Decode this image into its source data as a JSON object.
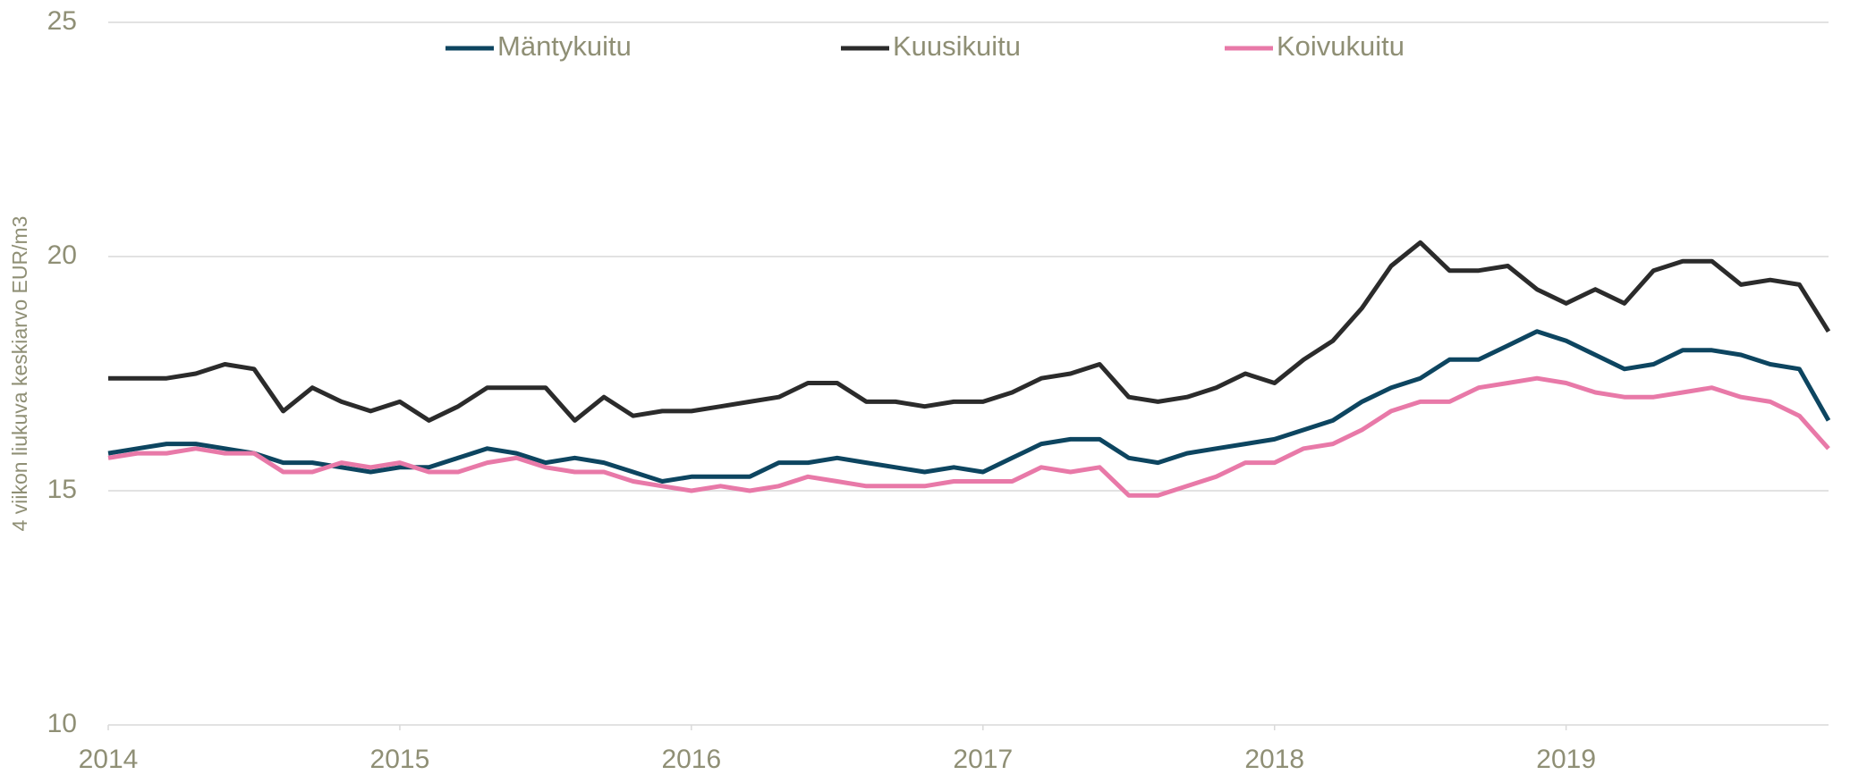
{
  "chart_data": {
    "type": "line",
    "y_label": "4 viikon liukuva keskiarvo EUR/m3",
    "x": [
      2014.0,
      2014.1,
      2014.2,
      2014.3,
      2014.4,
      2014.5,
      2014.6,
      2014.7,
      2014.8,
      2014.9,
      2015.0,
      2015.1,
      2015.2,
      2015.3,
      2015.4,
      2015.5,
      2015.6,
      2015.7,
      2015.8,
      2015.9,
      2016.0,
      2016.1,
      2016.2,
      2016.3,
      2016.4,
      2016.5,
      2016.6,
      2016.7,
      2016.8,
      2016.9,
      2017.0,
      2017.1,
      2017.2,
      2017.3,
      2017.4,
      2017.5,
      2017.6,
      2017.7,
      2017.8,
      2017.9,
      2018.0,
      2018.1,
      2018.2,
      2018.3,
      2018.4,
      2018.5,
      2018.6,
      2018.7,
      2018.8,
      2018.9,
      2019.0,
      2019.1,
      2019.2,
      2019.3,
      2019.4,
      2019.5,
      2019.6,
      2019.7,
      2019.8,
      2019.9
    ],
    "series": [
      {
        "name": "Mäntykuitu",
        "color": "#0d4560",
        "values": [
          15.8,
          15.9,
          16.0,
          16.0,
          15.9,
          15.8,
          15.6,
          15.6,
          15.5,
          15.4,
          15.5,
          15.5,
          15.7,
          15.9,
          15.8,
          15.6,
          15.7,
          15.6,
          15.4,
          15.2,
          15.3,
          15.3,
          15.3,
          15.6,
          15.6,
          15.7,
          15.6,
          15.5,
          15.4,
          15.5,
          15.4,
          15.7,
          16.0,
          16.1,
          16.1,
          15.7,
          15.6,
          15.8,
          15.9,
          16.0,
          16.1,
          16.3,
          16.5,
          16.9,
          17.2,
          17.4,
          17.8,
          17.8,
          18.1,
          18.4,
          18.2,
          17.9,
          17.6,
          17.7,
          18.0,
          18.0,
          17.9,
          17.7,
          17.6,
          16.5
        ]
      },
      {
        "name": "Kuusikuitu",
        "color": "#2b2b2b",
        "values": [
          17.4,
          17.4,
          17.4,
          17.5,
          17.7,
          17.6,
          16.7,
          17.2,
          16.9,
          16.7,
          16.9,
          16.5,
          16.8,
          17.2,
          17.2,
          17.2,
          16.5,
          17.0,
          16.6,
          16.7,
          16.7,
          16.8,
          16.9,
          17.0,
          17.3,
          17.3,
          16.9,
          16.9,
          16.8,
          16.9,
          16.9,
          17.1,
          17.4,
          17.5,
          17.7,
          17.0,
          16.9,
          17.0,
          17.2,
          17.5,
          17.3,
          17.8,
          18.2,
          18.9,
          19.8,
          20.3,
          19.7,
          19.7,
          19.8,
          19.3,
          19.0,
          19.3,
          19.0,
          19.7,
          19.9,
          19.9,
          19.4,
          19.5,
          19.4,
          18.4
        ]
      },
      {
        "name": "Koivukuitu",
        "color": "#e879a8",
        "values": [
          15.7,
          15.8,
          15.8,
          15.9,
          15.8,
          15.8,
          15.4,
          15.4,
          15.6,
          15.5,
          15.6,
          15.4,
          15.4,
          15.6,
          15.7,
          15.5,
          15.4,
          15.4,
          15.2,
          15.1,
          15.0,
          15.1,
          15.0,
          15.1,
          15.3,
          15.2,
          15.1,
          15.1,
          15.1,
          15.2,
          15.2,
          15.2,
          15.5,
          15.4,
          15.5,
          14.9,
          14.9,
          15.1,
          15.3,
          15.6,
          15.6,
          15.9,
          16.0,
          16.3,
          16.7,
          16.9,
          16.9,
          17.2,
          17.3,
          17.4,
          17.3,
          17.1,
          17.0,
          17.0,
          17.1,
          17.2,
          17.0,
          16.9,
          16.6,
          15.9
        ]
      }
    ],
    "xlim": [
      2014,
      2019.9
    ],
    "xticks": [
      2014,
      2015,
      2016,
      2017,
      2018,
      2019
    ],
    "ylim": [
      10,
      25
    ],
    "yticks": [
      10,
      15,
      20,
      25
    ],
    "grid": true
  }
}
